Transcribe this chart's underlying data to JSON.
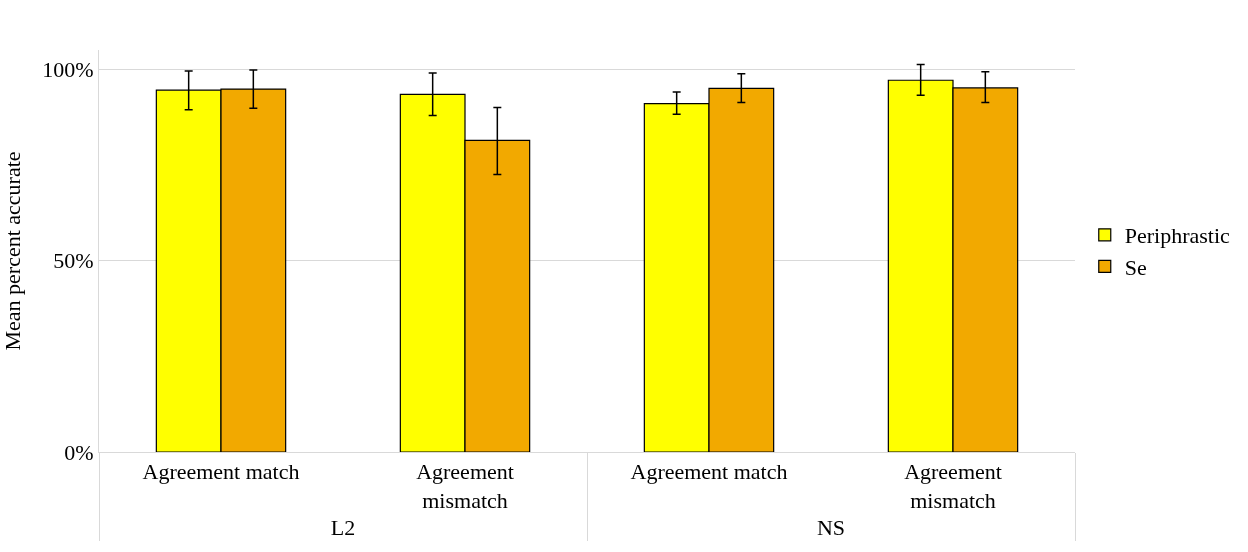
{
  "chart_data": {
    "type": "bar",
    "ylabel": "Mean percent accurate",
    "categories": [
      "Agreement match",
      "Agreement mismatch",
      "Agreement match",
      "Agreement mismatch"
    ],
    "annotations": [
      "L2",
      "NS"
    ],
    "series": [
      {
        "name": "Periphrastic",
        "color": "#ffff00",
        "values": [
          94.5,
          93.4,
          91.0,
          97.1
        ],
        "errors": [
          [
            89.4,
            99.5
          ],
          [
            87.9,
            99.0
          ],
          [
            88.2,
            94.0
          ],
          [
            93.2,
            101.2
          ]
        ]
      },
      {
        "name": "Se",
        "color": "#f2a900",
        "values": [
          94.8,
          81.4,
          95.0,
          95.1
        ],
        "errors": [
          [
            89.8,
            99.8
          ],
          [
            72.5,
            90.0
          ],
          [
            91.3,
            98.8
          ],
          [
            91.3,
            99.3
          ]
        ]
      }
    ],
    "ylim": [
      0,
      105
    ],
    "yticks": [
      {
        "value": 0,
        "label": "0%"
      },
      {
        "value": 50,
        "label": "50%"
      },
      {
        "value": 100,
        "label": "100%"
      }
    ],
    "grid": "y",
    "legend": "right"
  }
}
